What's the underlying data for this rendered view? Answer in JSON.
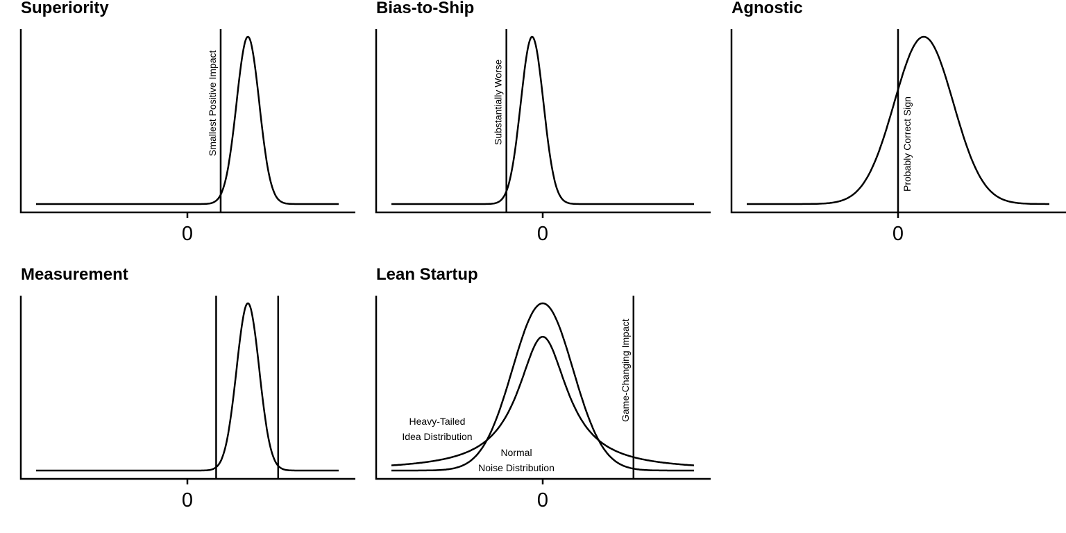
{
  "colors": {
    "line": "#000000",
    "background": "#ffffff"
  },
  "chart_data": [
    {
      "type": "line",
      "title": "Superiority",
      "xlim": [
        -1.0,
        1.0
      ],
      "x_ticks": [
        {
          "value": 0,
          "label": "0"
        }
      ],
      "series": [
        {
          "kind": "normal",
          "mean": 0.4,
          "sd": 0.075,
          "peak": 1.0
        }
      ],
      "vlines": [
        {
          "x": 0.22,
          "label": "Smallest Positive Impact"
        }
      ],
      "annotations": []
    },
    {
      "type": "line",
      "title": "Bias-to-Ship",
      "xlim": [
        -1.0,
        1.0
      ],
      "x_ticks": [
        {
          "value": 0,
          "label": "0"
        }
      ],
      "series": [
        {
          "kind": "normal",
          "mean": -0.07,
          "sd": 0.075,
          "peak": 1.0
        }
      ],
      "vlines": [
        {
          "x": -0.24,
          "label": "Substantially Worse"
        }
      ],
      "annotations": []
    },
    {
      "type": "line",
      "title": "Agnostic",
      "xlim": [
        -1.0,
        1.0
      ],
      "x_ticks": [
        {
          "value": 0,
          "label": "0"
        }
      ],
      "series": [
        {
          "kind": "normal",
          "mean": 0.17,
          "sd": 0.195,
          "peak": 1.0
        }
      ],
      "vlines": [
        {
          "x": 0.0,
          "label": "Probably Correct Sign"
        }
      ],
      "annotations": []
    },
    {
      "type": "line",
      "title": "Measurement",
      "xlim": [
        -1.0,
        1.0
      ],
      "x_ticks": [
        {
          "value": 0,
          "label": "0"
        }
      ],
      "series": [
        {
          "kind": "normal",
          "mean": 0.4,
          "sd": 0.075,
          "peak": 1.0
        }
      ],
      "vlines": [
        {
          "x": 0.19,
          "label": ""
        },
        {
          "x": 0.6,
          "label": ""
        }
      ],
      "annotations": []
    },
    {
      "type": "line",
      "title": "Lean Startup",
      "xlim": [
        -1.0,
        1.0
      ],
      "x_ticks": [
        {
          "value": 0,
          "label": "0"
        }
      ],
      "series": [
        {
          "kind": "cauchy",
          "mean": 0.0,
          "scale": 0.2,
          "peak": 0.8,
          "name": "Heavy-Tailed Idea Distribution"
        },
        {
          "kind": "normal",
          "mean": 0.0,
          "sd": 0.2,
          "peak": 1.0,
          "name": "Normal Noise Distribution"
        }
      ],
      "vlines": [
        {
          "x": 0.6,
          "label": "Game-Changing Impact"
        }
      ],
      "annotations": [
        {
          "lines": [
            "Heavy-Tailed",
            "Idea Distribution"
          ]
        },
        {
          "lines": [
            "Normal",
            "Noise Distribution"
          ]
        }
      ]
    }
  ]
}
